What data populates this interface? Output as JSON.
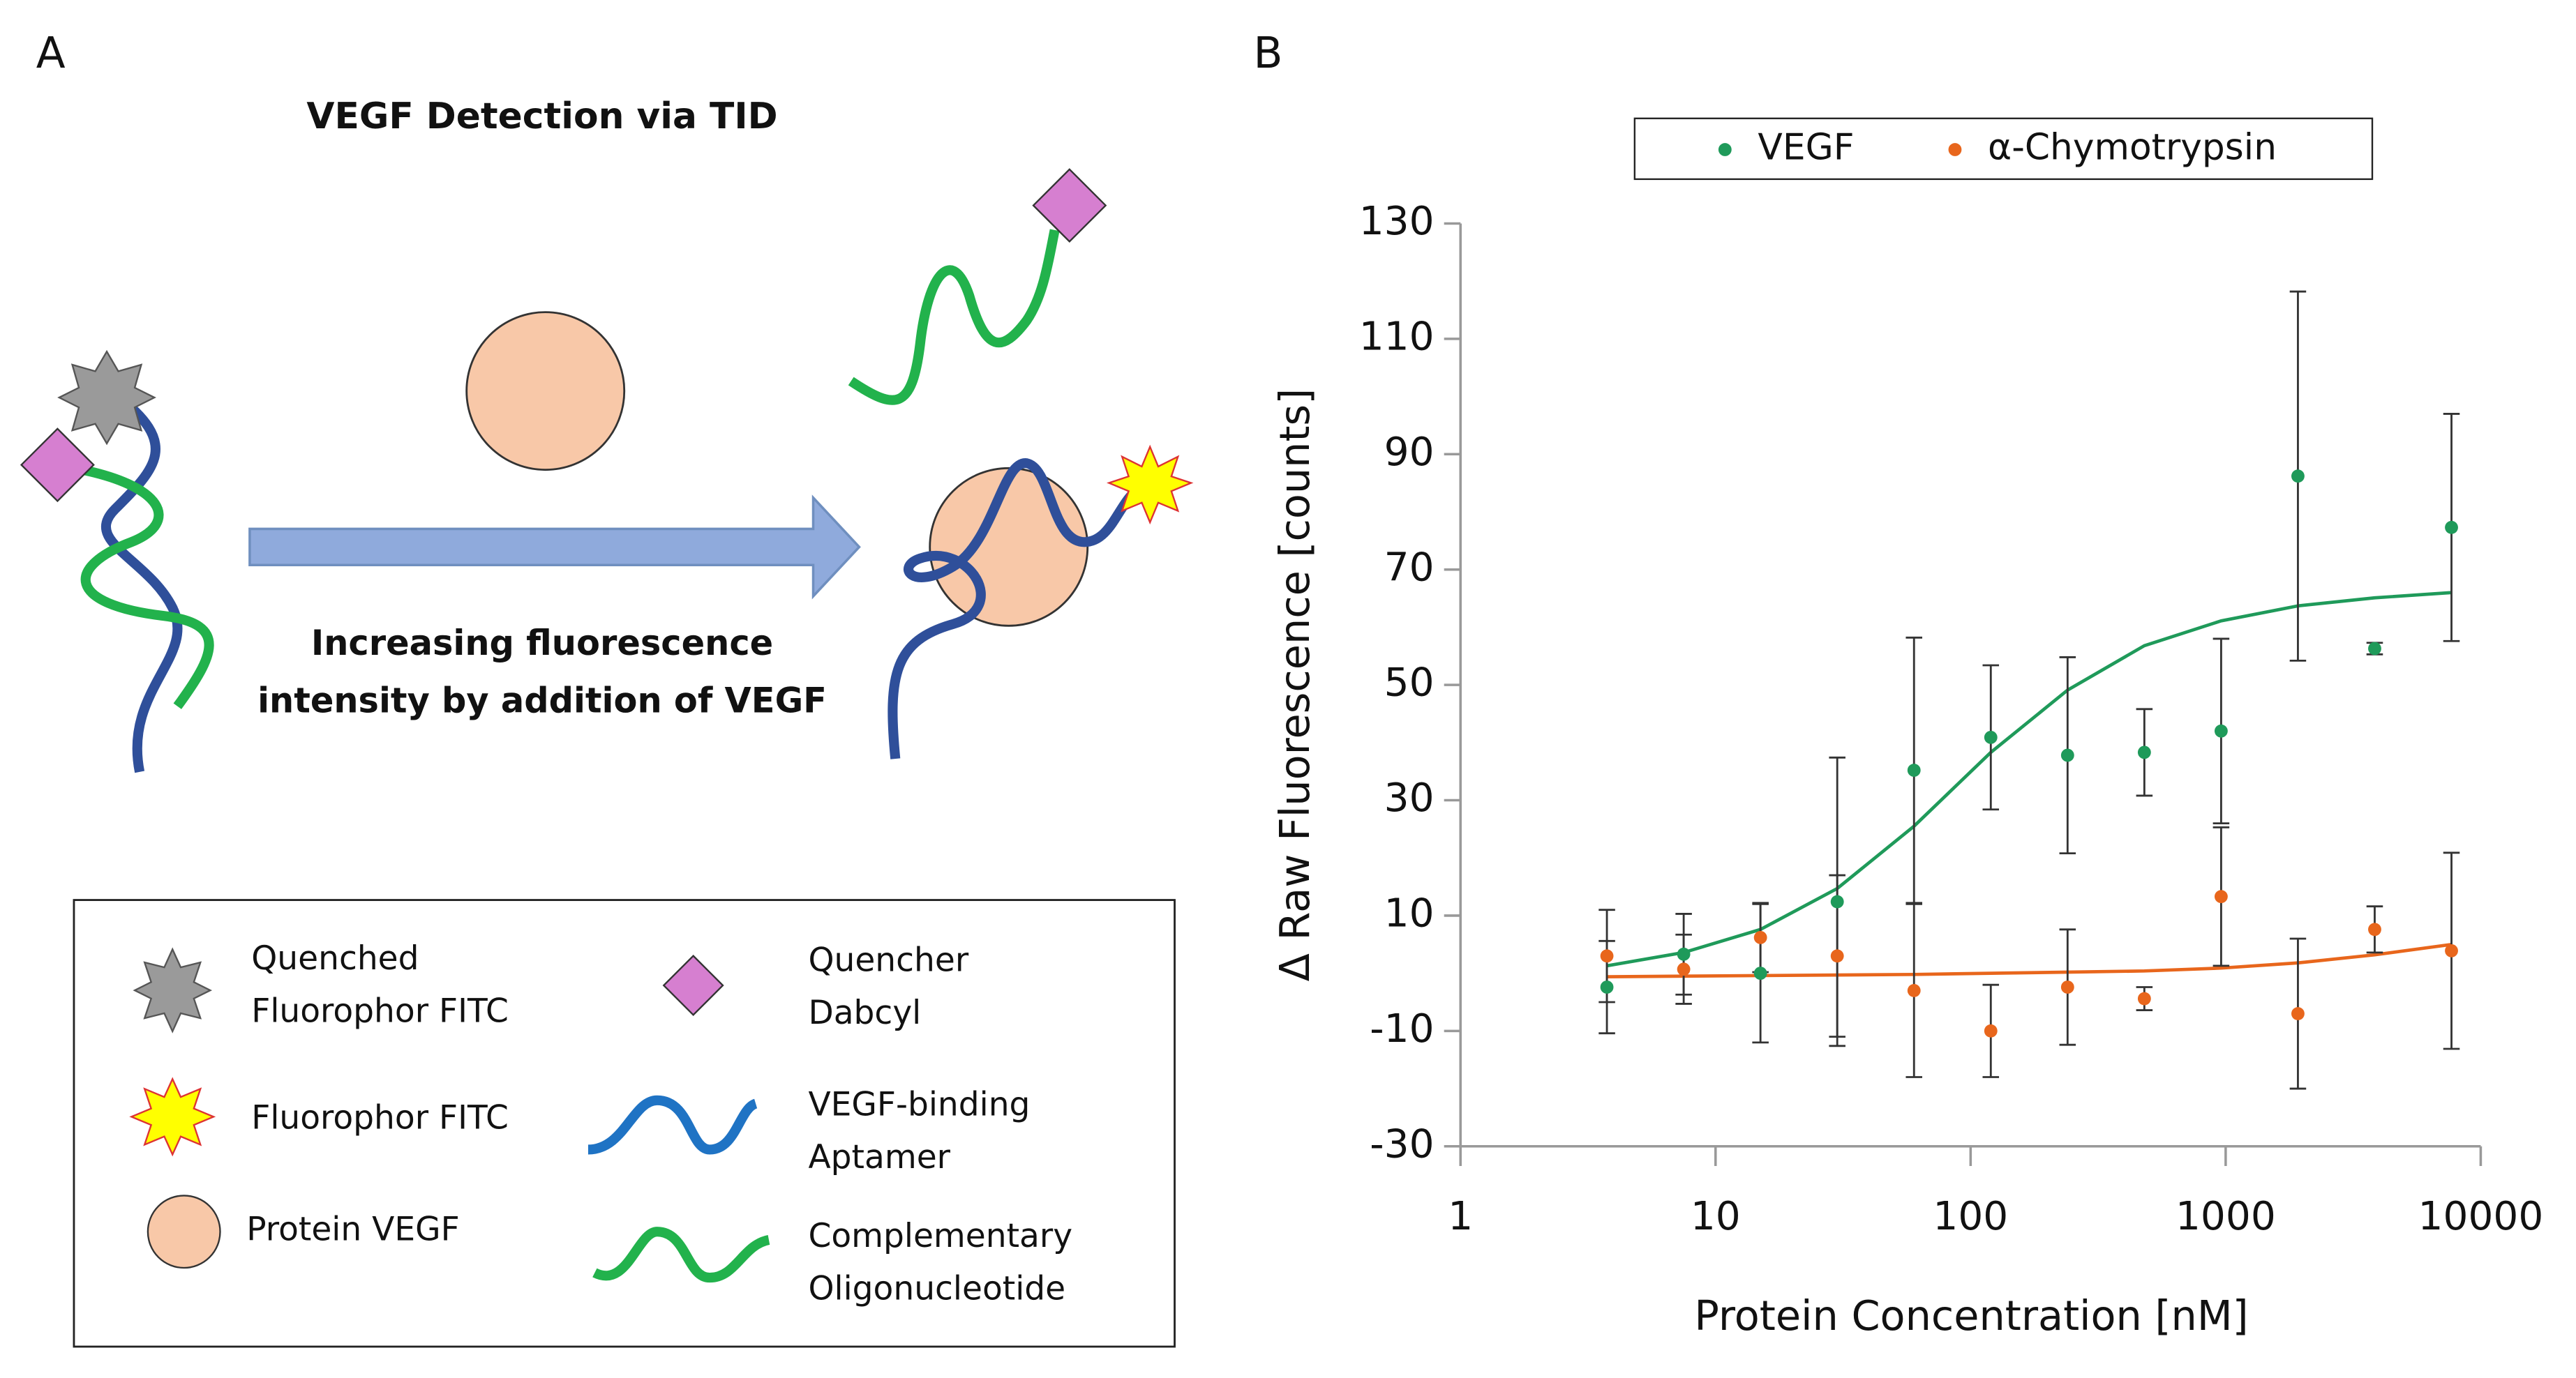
{
  "panel_a": {
    "label": "A",
    "title": "VEGF Detection via TID",
    "caption": [
      "Increasing fluorescence",
      "intensity by addition of VEGF"
    ],
    "legend": {
      "quenched": [
        "Quenched",
        "Fluorophor FITC"
      ],
      "fluorophor": "Fluorophor FITC",
      "protein": "Protein VEGF",
      "quencher": [
        "Quencher",
        "Dabcyl"
      ],
      "aptamer": [
        "VEGF-binding",
        "Aptamer"
      ],
      "oligo": [
        "Complementary",
        "Oligonucleotide"
      ]
    }
  },
  "chart_data": {
    "type": "scatter",
    "panel_label": "B",
    "x_label": "Protein Concentration [nM]",
    "y_label": "Δ Raw Fluorescence [counts]",
    "xscale": "log",
    "xlim": [
      1,
      10000
    ],
    "xticks": [
      1,
      10,
      100,
      1000,
      10000
    ],
    "ylim": [
      -30,
      130
    ],
    "yticks": [
      -30,
      -10,
      10,
      30,
      50,
      70,
      90,
      110,
      130
    ],
    "legend": "top",
    "x": [
      3.75,
      7.5,
      15,
      30,
      60,
      120,
      240,
      480,
      960,
      1920,
      3840,
      7680
    ],
    "series": [
      {
        "name": "VEGF",
        "color": "#1f9a5a",
        "values": [
          -2.4,
          3.3,
          0,
          12.4,
          35.2,
          40.9,
          37.8,
          38.3,
          42,
          86.2,
          56.3,
          77.3
        ],
        "errors": [
          8,
          7,
          12,
          25,
          23,
          12.5,
          17,
          7.5,
          16,
          32,
          1,
          19.7
        ],
        "fit": [
          1.3,
          3.6,
          7.6,
          14.7,
          25.5,
          38.3,
          49.1,
          56.8,
          61.1,
          63.7,
          65.1,
          66
        ]
      },
      {
        "name": "α-Chymotrypsin",
        "color": "#e8661c",
        "values": [
          3,
          0.7,
          6.2,
          3,
          -3,
          -10,
          -2.4,
          -4.4,
          13.3,
          -7,
          7.6,
          3.9
        ],
        "errors": [
          8,
          6,
          6,
          14,
          15,
          8,
          10,
          2,
          12,
          13,
          4,
          17
        ],
        "fit": [
          -0.6,
          -0.5,
          -0.4,
          -0.3,
          -0.2,
          0,
          0.2,
          0.4,
          0.9,
          1.8,
          3.2,
          5
        ]
      }
    ]
  }
}
